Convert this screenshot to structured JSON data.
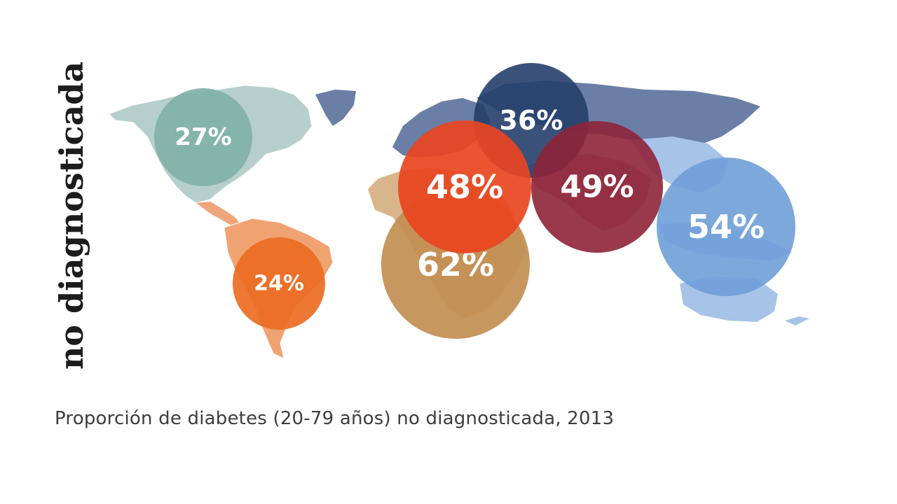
{
  "vertical_title": "no diagnosticada",
  "caption": "Proporción de diabetes (20-79 años) no diagnosticada, 2013",
  "regions": [
    {
      "value": "27%",
      "color": "#7fb0a5"
    },
    {
      "value": "24%",
      "color": "#ec6b22"
    },
    {
      "value": "36%",
      "color": "#253f6b"
    },
    {
      "value": "48%",
      "color": "#e8451f"
    },
    {
      "value": "49%",
      "color": "#8e2438"
    },
    {
      "value": "62%",
      "color": "#c28e52"
    },
    {
      "value": "54%",
      "color": "#6f9fd8"
    }
  ]
}
